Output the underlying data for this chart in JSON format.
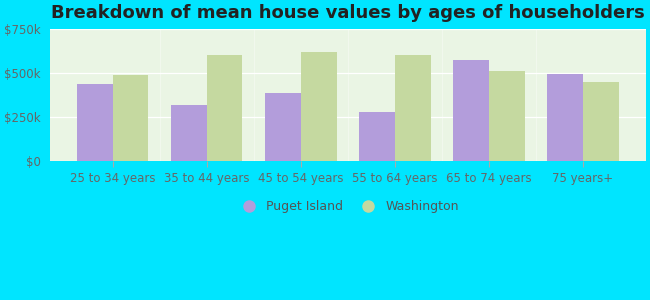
{
  "title": "Breakdown of mean house values by ages of householders",
  "categories": [
    "25 to 34 years",
    "35 to 44 years",
    "45 to 54 years",
    "55 to 64 years",
    "65 to 74 years",
    "75 years+"
  ],
  "puget_island": [
    440000,
    320000,
    390000,
    280000,
    575000,
    495000
  ],
  "washington": [
    490000,
    605000,
    620000,
    605000,
    515000,
    450000
  ],
  "puget_color": "#b39ddb",
  "washington_color": "#c5d9a0",
  "background_outer": "#00e5ff",
  "background_inner": "#e8f5e0",
  "ylim": [
    0,
    750000
  ],
  "yticks": [
    0,
    250000,
    500000,
    750000
  ],
  "ytick_labels": [
    "$0",
    "$250k",
    "$500k",
    "$750k"
  ],
  "legend_labels": [
    "Puget Island",
    "Washington"
  ],
  "bar_width": 0.38,
  "title_fontsize": 13,
  "tick_fontsize": 8.5,
  "legend_fontsize": 9
}
